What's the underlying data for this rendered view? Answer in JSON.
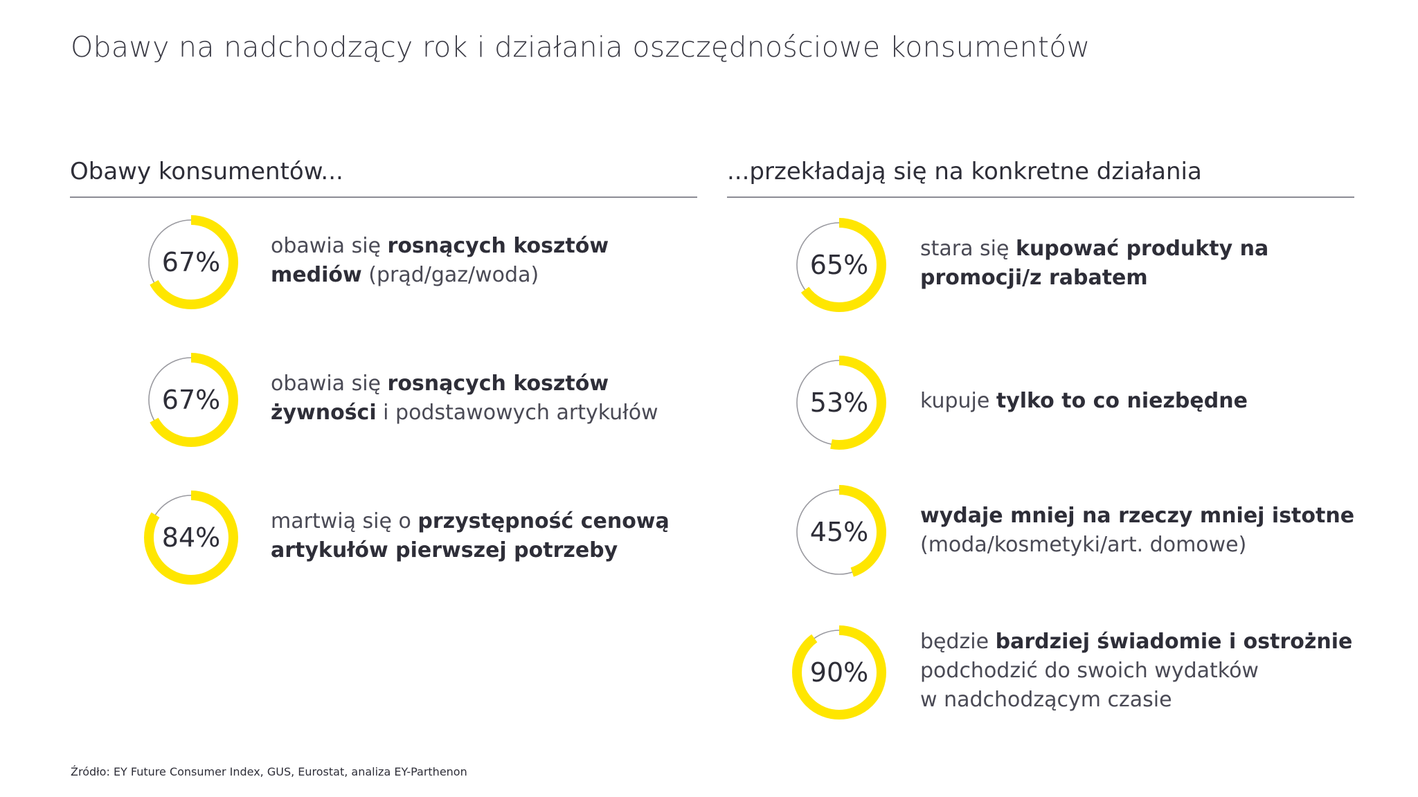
{
  "title": "Obawy na nadchodzący rok i działania oszczędnościowe konsumentów",
  "colors": {
    "accent": "#FFE600",
    "track": "#9a9aa0",
    "text": "#2e2e38"
  },
  "left": {
    "heading": "Obawy konsumentów...",
    "items": [
      {
        "value": 67,
        "label": "67%",
        "segments": [
          {
            "t": "obawia się ",
            "b": false
          },
          {
            "t": "rosnących kosztów",
            "b": true
          },
          {
            "br": true
          },
          {
            "t": "mediów",
            "b": true
          },
          {
            "t": " (prąd/gaz/woda)",
            "b": false
          }
        ]
      },
      {
        "value": 67,
        "label": "67%",
        "segments": [
          {
            "t": "obawia się ",
            "b": false
          },
          {
            "t": "rosnących kosztów",
            "b": true
          },
          {
            "br": true
          },
          {
            "t": "żywności",
            "b": true
          },
          {
            "t": " i podstawowych artykułów",
            "b": false
          }
        ]
      },
      {
        "value": 84,
        "label": "84%",
        "segments": [
          {
            "t": "martwią się o ",
            "b": false
          },
          {
            "t": "przystępność cenową",
            "b": true
          },
          {
            "br": true
          },
          {
            "t": "artykułów pierwszej potrzeby",
            "b": true
          }
        ]
      }
    ]
  },
  "right": {
    "heading": "...przekładają się na konkretne działania",
    "items": [
      {
        "value": 65,
        "label": "65%",
        "segments": [
          {
            "t": "stara się ",
            "b": false
          },
          {
            "t": "kupować produkty na",
            "b": true
          },
          {
            "br": true
          },
          {
            "t": "promocji/z rabatem",
            "b": true
          }
        ]
      },
      {
        "value": 53,
        "label": "53%",
        "segments": [
          {
            "t": "kupuje ",
            "b": false
          },
          {
            "t": "tylko to co niezbędne",
            "b": true
          }
        ]
      },
      {
        "value": 45,
        "label": "45%",
        "segments": [
          {
            "t": "wydaje mniej na rzeczy mniej istotne",
            "b": true
          },
          {
            "br": true
          },
          {
            "t": "(moda/kosmetyki/art. domowe)",
            "b": false
          }
        ]
      },
      {
        "value": 90,
        "label": "90%",
        "segments": [
          {
            "t": "będzie ",
            "b": false
          },
          {
            "t": "bardziej świadomie i ostrożnie",
            "b": true
          },
          {
            "br": true
          },
          {
            "t": "podchodzić do swoich wydatków",
            "b": false
          },
          {
            "br": true
          },
          {
            "t": "w nadchodzącym czasie",
            "b": false
          }
        ]
      }
    ]
  },
  "source": "Źródło: EY Future Consumer Index, GUS, Eurostat, analiza EY-Parthenon"
}
